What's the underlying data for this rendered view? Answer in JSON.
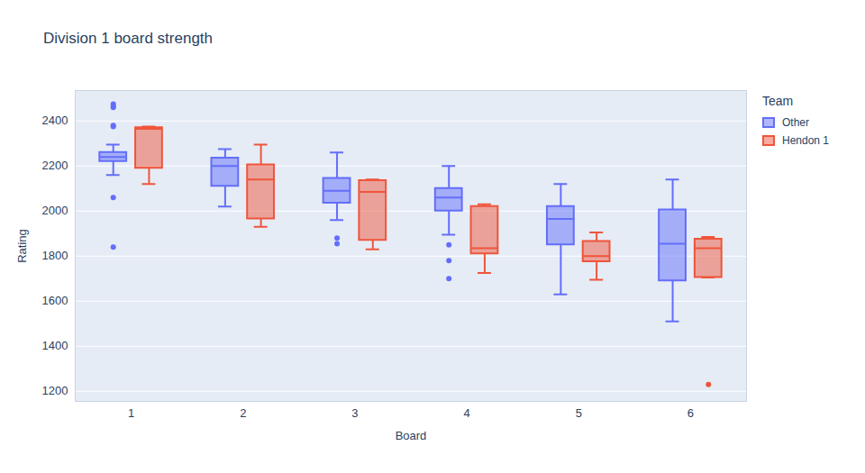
{
  "chart_data": {
    "type": "box",
    "title": "Division 1 board strength",
    "x_label": "Board",
    "y_label": "Rating",
    "categories": [
      "1",
      "2",
      "3",
      "4",
      "5",
      "6"
    ],
    "series": [
      {
        "name": "Other",
        "color": "#636efa",
        "low": [
          2160,
          2020,
          1960,
          1895,
          1630,
          1510
        ],
        "q1": [
          2220,
          2110,
          2035,
          2000,
          1850,
          1690
        ],
        "median": [
          2240,
          2200,
          2090,
          2060,
          1965,
          1855
        ],
        "q3": [
          2260,
          2235,
          2145,
          2100,
          2020,
          2005
        ],
        "high": [
          2295,
          2275,
          2260,
          2200,
          2120,
          2140
        ],
        "outliers": [
          [
            2475,
            2465,
            2460,
            2380,
            2375,
            2060,
            1840
          ],
          [],
          [
            1880,
            1855
          ],
          [
            1850,
            1780,
            1700
          ],
          [],
          []
        ]
      },
      {
        "name": "Hendon 1",
        "color": "#EF553B",
        "low": [
          2120,
          1930,
          1830,
          1725,
          1695,
          1705
        ],
        "q1": [
          2190,
          1965,
          1870,
          1810,
          1775,
          1705
        ],
        "median": [
          2365,
          2140,
          2085,
          1835,
          1800,
          1835
        ],
        "q3": [
          2370,
          2205,
          2135,
          2020,
          1865,
          1875
        ],
        "high": [
          2375,
          2295,
          2140,
          2030,
          1905,
          1885
        ],
        "outliers": [
          [],
          [],
          [],
          [],
          [],
          [
            1230
          ]
        ]
      }
    ],
    "ylim": [
      1155,
      2535
    ],
    "yticks": [
      1200,
      1400,
      1600,
      1800,
      2000,
      2200,
      2400
    ],
    "grid": true,
    "legend": "right",
    "legend_title": "Team"
  }
}
